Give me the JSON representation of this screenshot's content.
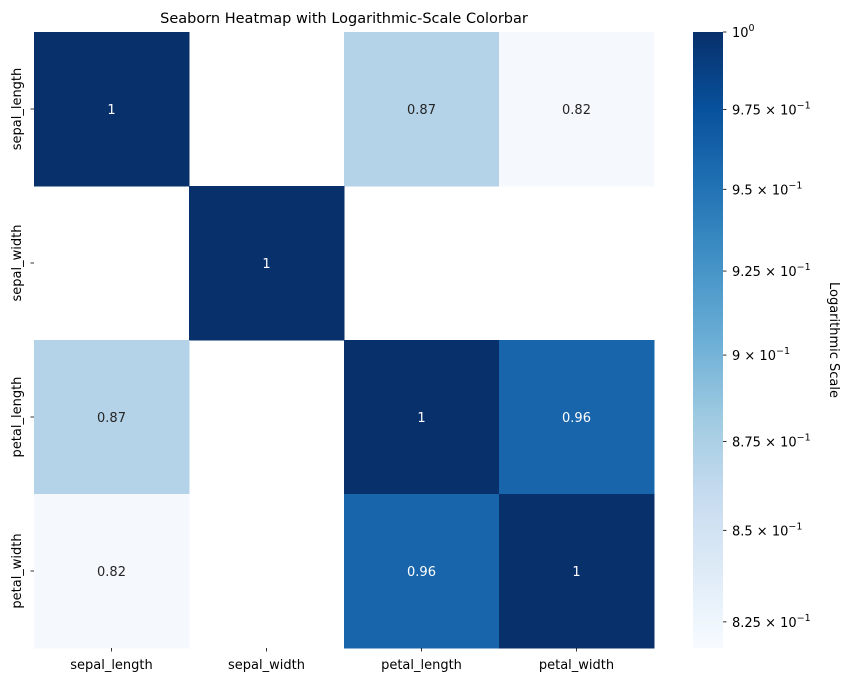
{
  "chart_data": {
    "type": "heatmap",
    "title": "Seaborn Heatmap with Logarithmic-Scale Colorbar",
    "xlabel": "",
    "ylabel": "",
    "x_categories": [
      "sepal_length",
      "sepal_width",
      "petal_length",
      "petal_width"
    ],
    "y_categories": [
      "sepal_length",
      "sepal_width",
      "petal_length",
      "petal_width"
    ],
    "values": [
      [
        1,
        null,
        0.87,
        0.82
      ],
      [
        null,
        1,
        null,
        null
      ],
      [
        0.87,
        null,
        1,
        0.96
      ],
      [
        0.82,
        null,
        0.96,
        1
      ]
    ],
    "annotations": [
      [
        "1",
        "",
        "0.87",
        "0.82"
      ],
      [
        "",
        "1",
        "",
        ""
      ],
      [
        "0.87",
        "",
        "1",
        "0.96"
      ],
      [
        "0.82",
        "",
        "0.96",
        "1"
      ]
    ],
    "colormap": "Blues",
    "colorbar": {
      "label": "Logarithmic Scale",
      "scale": "log",
      "range": [
        0.818,
        1.0
      ],
      "ticks": [
        {
          "value": 1.0,
          "mantissa": "",
          "exponent": "0",
          "label": "10^0"
        },
        {
          "value": 0.975,
          "mantissa": "9.75",
          "exponent": "−1",
          "label": "9.75 × 10^-1"
        },
        {
          "value": 0.95,
          "mantissa": "9.5",
          "exponent": "−1",
          "label": "9.5 × 10^-1"
        },
        {
          "value": 0.925,
          "mantissa": "9.25",
          "exponent": "−1",
          "label": "9.25 × 10^-1"
        },
        {
          "value": 0.9,
          "mantissa": "9",
          "exponent": "−1",
          "label": "9 × 10^-1"
        },
        {
          "value": 0.875,
          "mantissa": "8.75",
          "exponent": "−1",
          "label": "8.75 × 10^-1"
        },
        {
          "value": 0.85,
          "mantissa": "8.5",
          "exponent": "−1",
          "label": "8.5 × 10^-1"
        },
        {
          "value": 0.825,
          "mantissa": "8.25",
          "exponent": "−1",
          "label": "8.25 × 10^-1"
        }
      ]
    },
    "grid": false,
    "legend": "colorbar-right"
  }
}
